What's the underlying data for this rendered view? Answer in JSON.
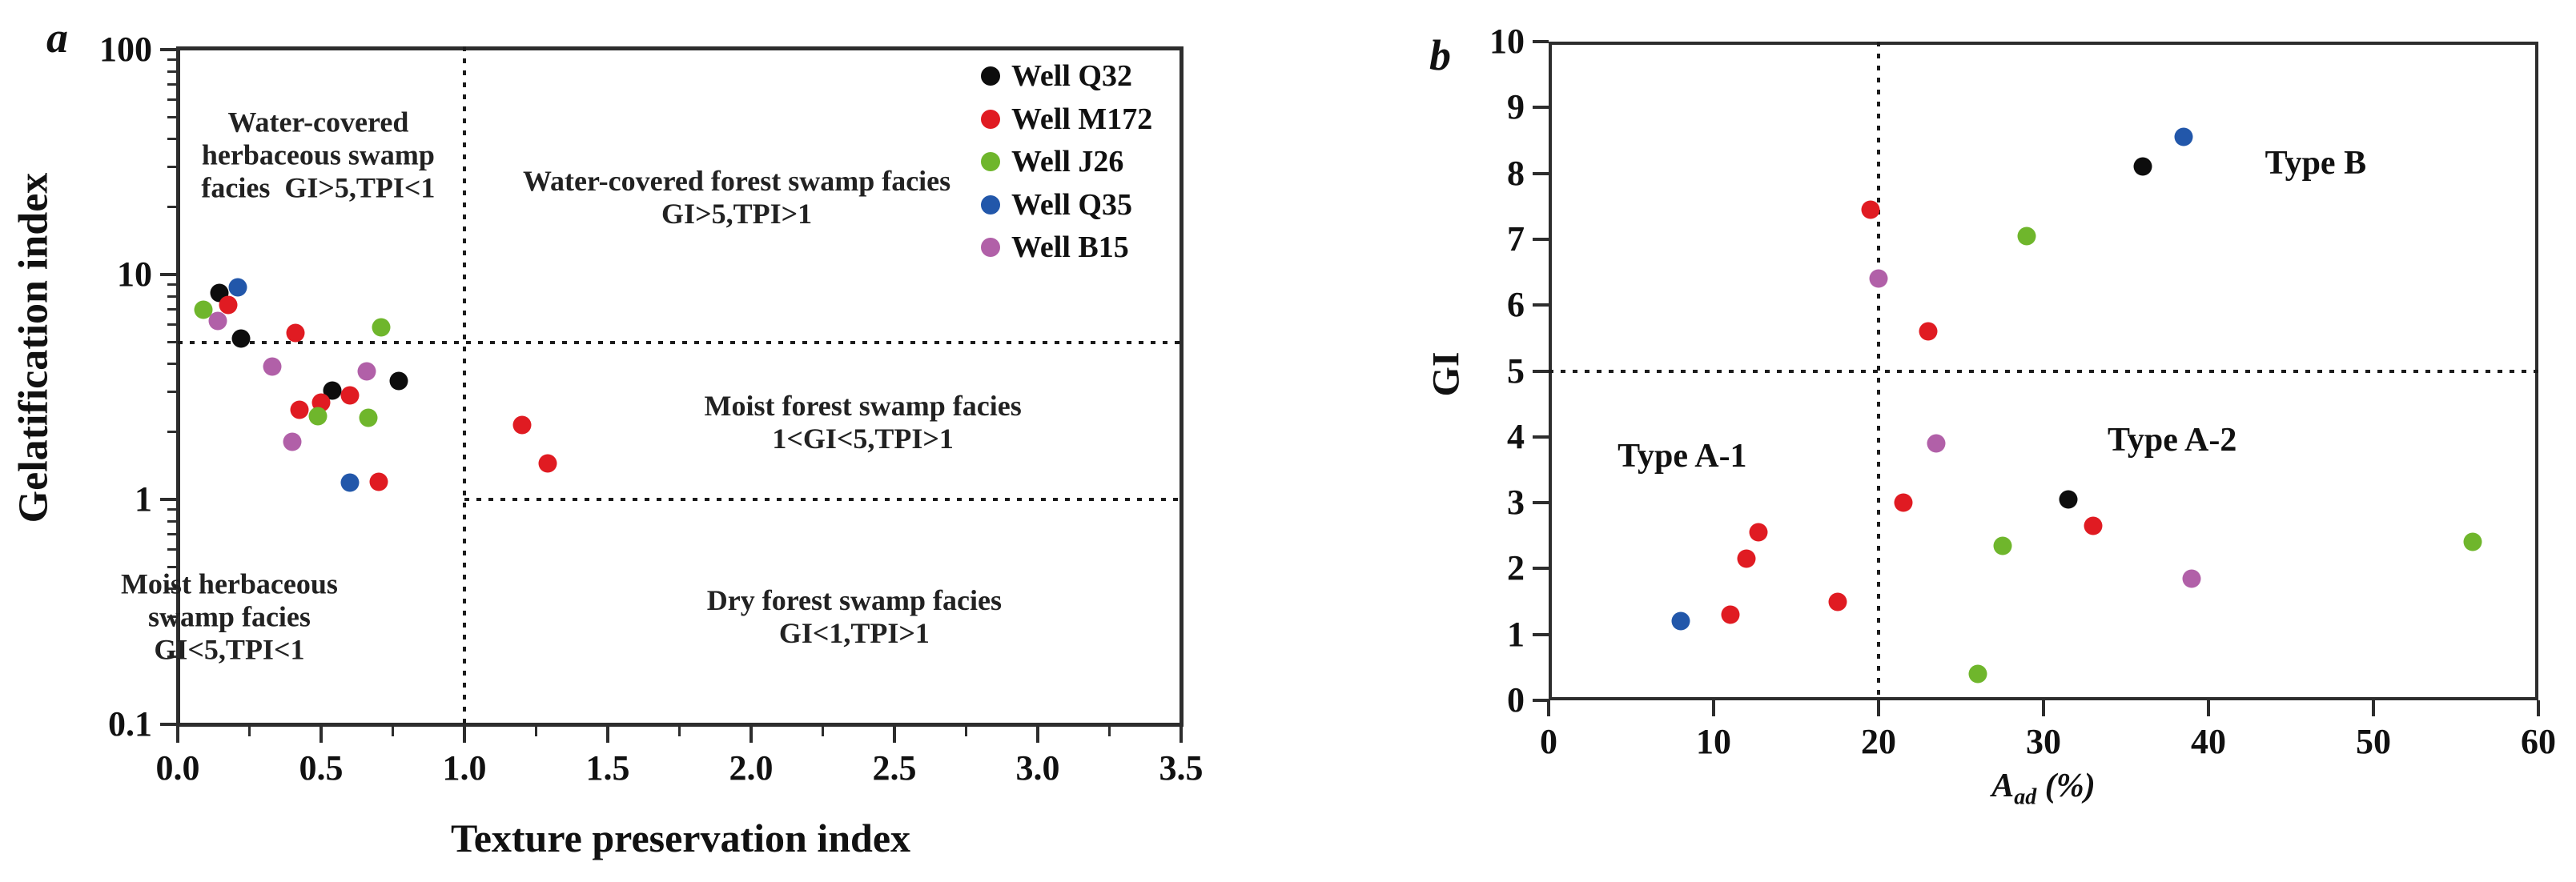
{
  "page": {
    "background": "#ffffff"
  },
  "colors": {
    "black": "#0d0d0d",
    "red": "#e01b22",
    "green": "#6fb62c",
    "blue": "#2257aa",
    "purple": "#b160a8",
    "frame": "#2d2d2d",
    "text": "#111111"
  },
  "legend": {
    "items": [
      {
        "label": "Well Q32",
        "color": "black"
      },
      {
        "label": "Well M172",
        "color": "red"
      },
      {
        "label": "Well J26",
        "color": "green"
      },
      {
        "label": "Well Q35",
        "color": "blue"
      },
      {
        "label": "Well B15",
        "color": "purple"
      }
    ]
  },
  "chart_data": [
    {
      "panel": "a",
      "type": "scatter",
      "xlabel": "Texture preservation index",
      "ylabel": "Gelatification index",
      "x_axis": {
        "min": 0,
        "max": 3.5,
        "ticks": [
          0.0,
          0.5,
          1.0,
          1.5,
          2.0,
          2.5,
          3.0,
          3.5
        ],
        "tick_labels": [
          "0.0",
          "0.5",
          "1.0",
          "1.5",
          "2.0",
          "2.5",
          "3.0",
          "3.5"
        ],
        "minor_ticks": [
          0.25,
          0.75,
          1.25,
          1.75,
          2.25,
          2.75,
          3.25
        ]
      },
      "y_axis": {
        "scale": "log",
        "min": 0.1,
        "max": 100,
        "ticks": [
          100,
          10,
          1,
          0.1
        ],
        "tick_labels": [
          "100",
          "10",
          "1",
          "0.1"
        ],
        "minor_ticks": [
          0.2,
          0.3,
          0.4,
          0.5,
          0.6,
          0.7,
          0.8,
          0.9,
          2,
          3,
          4,
          5,
          6,
          7,
          8,
          9,
          20,
          30,
          40,
          50,
          60,
          70,
          80,
          90
        ]
      },
      "guides": [
        {
          "orient": "h",
          "gi": 5,
          "x_from": 0,
          "x_to": 3.5
        },
        {
          "orient": "h",
          "gi": 1,
          "x_from": 1,
          "x_to": 3.5
        },
        {
          "orient": "v",
          "tpi": 1,
          "gi_from": 0.1,
          "gi_to": 100
        }
      ],
      "annotations": [
        {
          "lines": [
            "Water-covered",
            "herbaceous swamp",
            "facies  GI>5,TPI<1"
          ],
          "tpi": 0.49,
          "gi": 34
        },
        {
          "lines": [
            "Water-covered forest swamp facies",
            "GI>5,TPI>1"
          ],
          "tpi": 1.95,
          "gi": 22
        },
        {
          "lines": [
            "Moist forest swamp facies",
            "1<GI<5,TPI>1"
          ],
          "tpi": 2.39,
          "gi": 2.2
        },
        {
          "lines": [
            "Moist herbaceous",
            "swamp facies",
            "GI<5,TPI<1"
          ],
          "tpi": 0.18,
          "gi": 0.3
        },
        {
          "lines": [
            "Dry forest swamp facies",
            "GI<1,TPI>1"
          ],
          "tpi": 2.36,
          "gi": 0.3
        }
      ],
      "series": [
        {
          "well": "Well Q32",
          "color": "black",
          "points": [
            [
              0.145,
              8.3
            ],
            [
              0.22,
              5.2
            ],
            [
              0.54,
              3.05
            ],
            [
              0.77,
              3.35
            ]
          ]
        },
        {
          "well": "Well M172",
          "color": "red",
          "points": [
            [
              0.175,
              7.3
            ],
            [
              0.41,
              5.5
            ],
            [
              0.425,
              2.5
            ],
            [
              0.5,
              2.7
            ],
            [
              0.6,
              2.9
            ],
            [
              0.7,
              1.2
            ],
            [
              1.2,
              2.15
            ],
            [
              1.29,
              1.45
            ]
          ]
        },
        {
          "well": "Well J26",
          "color": "green",
          "points": [
            [
              0.09,
              7.0
            ],
            [
              0.71,
              5.8
            ],
            [
              0.49,
              2.35
            ],
            [
              0.665,
              2.3
            ]
          ]
        },
        {
          "well": "Well Q35",
          "color": "blue",
          "points": [
            [
              0.21,
              8.8
            ],
            [
              0.6,
              1.19
            ]
          ]
        },
        {
          "well": "Well B15",
          "color": "purple",
          "points": [
            [
              0.14,
              6.2
            ],
            [
              0.33,
              3.9
            ],
            [
              0.66,
              3.7
            ],
            [
              0.4,
              1.8
            ]
          ]
        }
      ]
    },
    {
      "panel": "b",
      "type": "scatter",
      "xlabel_parts": {
        "var": "A",
        "sub": "ad",
        "unit": " (%)"
      },
      "ylabel": "GI",
      "x_axis": {
        "min": 0,
        "max": 60,
        "ticks": [
          0,
          10,
          20,
          30,
          40,
          50,
          60
        ],
        "tick_labels": [
          "0",
          "10",
          "20",
          "30",
          "40",
          "50",
          "60"
        ],
        "minor_ticks": []
      },
      "y_axis": {
        "scale": "linear",
        "min": 0,
        "max": 10,
        "ticks": [
          10,
          9,
          8,
          7,
          6,
          5,
          4,
          3,
          2,
          1,
          0
        ],
        "tick_labels": [
          "10",
          "9",
          "8",
          "7",
          "6",
          "5",
          "4",
          "3",
          "2",
          "1",
          "0"
        ],
        "minor_ticks": []
      },
      "guides": [
        {
          "orient": "h",
          "gi": 5,
          "x_from": 0,
          "x_to": 60
        },
        {
          "orient": "v",
          "aad": 20,
          "gi_from": 0,
          "gi_to": 10
        }
      ],
      "annotations": [
        {
          "lines": [
            "Type A-1"
          ],
          "aad": 8.1,
          "gi": 3.7
        },
        {
          "lines": [
            "Type A-2"
          ],
          "aad": 37.8,
          "gi": 3.95
        },
        {
          "lines": [
            "Type B"
          ],
          "aad": 46.5,
          "gi": 8.15
        }
      ],
      "series": [
        {
          "well": "Well Q32",
          "color": "black",
          "points": [
            [
              36,
              8.1
            ],
            [
              31.5,
              3.05
            ]
          ]
        },
        {
          "well": "Well M172",
          "color": "red",
          "points": [
            [
              19.5,
              7.45
            ],
            [
              23,
              5.6
            ],
            [
              21.5,
              3.0
            ],
            [
              33,
              2.65
            ],
            [
              12.7,
              2.55
            ],
            [
              12,
              2.15
            ],
            [
              17.5,
              1.5
            ],
            [
              11,
              1.3
            ]
          ]
        },
        {
          "well": "Well J26",
          "color": "green",
          "points": [
            [
              29,
              7.05
            ],
            [
              27.5,
              2.35
            ],
            [
              26,
              0.4
            ],
            [
              56,
              2.4
            ]
          ]
        },
        {
          "well": "Well Q35",
          "color": "blue",
          "points": [
            [
              38.5,
              8.55
            ],
            [
              8,
              1.2
            ]
          ]
        },
        {
          "well": "Well B15",
          "color": "purple",
          "points": [
            [
              20,
              6.4
            ],
            [
              23.5,
              3.9
            ],
            [
              39,
              1.85
            ]
          ]
        }
      ]
    }
  ]
}
